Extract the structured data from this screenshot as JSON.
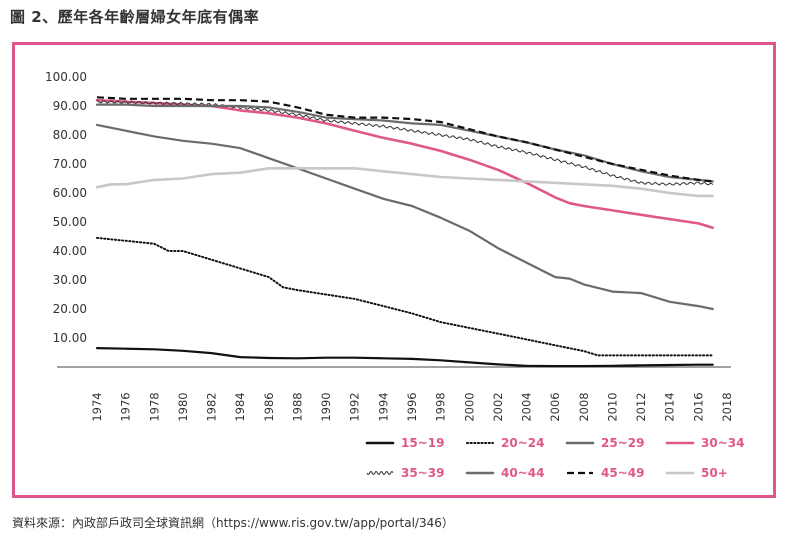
{
  "figure": {
    "title": "圖 2、歷年各年齡層婦女年底有偶率",
    "source": "資料來源：內政部戶政司全球資訊網（https://www.ris.gov.tw/app/portal/346）"
  },
  "chart_data": {
    "type": "line",
    "title": "圖 2、歷年各年齡層婦女年底有偶率",
    "xlabel": "",
    "ylabel": "",
    "xlim": [
      1974,
      2018
    ],
    "ylim": [
      0,
      100
    ],
    "x_ticks": [
      "1974",
      "1976",
      "1978",
      "1980",
      "1982",
      "1984",
      "1986",
      "1988",
      "1990",
      "1992",
      "1994",
      "1996",
      "1998",
      "2000",
      "2002",
      "2004",
      "2006",
      "2008",
      "2010",
      "2012",
      "2014",
      "2016",
      "2018"
    ],
    "y_ticks": [
      "10.00",
      "20.00",
      "30.00",
      "40.00",
      "50.00",
      "60.00",
      "70.00",
      "80.00",
      "90.00",
      "100.00"
    ],
    "grid": false,
    "legend_position": "bottom",
    "series": [
      {
        "name": "15~19",
        "color": "#111111",
        "style": "solid",
        "x": [
          1974,
          1976,
          1978,
          1980,
          1982,
          1984,
          1986,
          1988,
          1990,
          1992,
          1994,
          1996,
          1998,
          2000,
          2002,
          2004,
          2006,
          2008,
          2010,
          2012,
          2014,
          2016,
          2017
        ],
        "values": [
          6.5,
          6.3,
          6.1,
          5.6,
          4.8,
          3.4,
          3.1,
          3.0,
          3.2,
          3.2,
          3.0,
          2.8,
          2.3,
          1.6,
          0.9,
          0.4,
          0.3,
          0.3,
          0.4,
          0.6,
          0.7,
          0.8,
          0.8
        ]
      },
      {
        "name": "20~24",
        "color": "#111111",
        "style": "dotted",
        "x": [
          1974,
          1976,
          1978,
          1979,
          1980,
          1982,
          1984,
          1986,
          1987,
          1988,
          1990,
          1992,
          1994,
          1996,
          1998,
          2000,
          2002,
          2004,
          2006,
          2008,
          2009,
          2010,
          2012,
          2014,
          2016,
          2017
        ],
        "values": [
          44.5,
          43.5,
          42.5,
          40.0,
          40.0,
          37.0,
          34.0,
          31.0,
          27.5,
          26.5,
          25.0,
          23.5,
          21.0,
          18.5,
          15.5,
          13.5,
          11.5,
          9.5,
          7.5,
          5.5,
          4.0,
          4.0,
          4.0,
          4.0,
          4.0,
          4.0
        ]
      },
      {
        "name": "25~29",
        "color": "#6b6b6b",
        "style": "solid",
        "x": [
          1974,
          1976,
          1978,
          1980,
          1982,
          1984,
          1986,
          1988,
          1990,
          1992,
          1994,
          1996,
          1998,
          2000,
          2002,
          2004,
          2006,
          2007,
          2008,
          2010,
          2012,
          2014,
          2016,
          2017
        ],
        "values": [
          83.5,
          81.5,
          79.5,
          78.0,
          77.0,
          75.5,
          72.0,
          68.5,
          65.0,
          61.5,
          58.0,
          55.5,
          51.5,
          47.0,
          41.0,
          36.0,
          31.0,
          30.5,
          28.5,
          26.0,
          25.5,
          22.5,
          21.0,
          20.0
        ]
      },
      {
        "name": "30~34",
        "color": "#e0578a",
        "style": "solid",
        "x": [
          1974,
          1976,
          1978,
          1980,
          1982,
          1984,
          1986,
          1988,
          1990,
          1992,
          1994,
          1996,
          1998,
          2000,
          2002,
          2004,
          2006,
          2007,
          2008,
          2010,
          2012,
          2014,
          2016,
          2017
        ],
        "values": [
          92.0,
          91.5,
          91.0,
          90.5,
          90.0,
          88.5,
          87.5,
          86.0,
          84.0,
          81.5,
          79.0,
          77.0,
          74.5,
          71.5,
          68.0,
          63.5,
          58.5,
          56.5,
          55.5,
          54.0,
          52.5,
          51.0,
          49.5,
          48.0
        ]
      },
      {
        "name": "35~39",
        "color": "#333333",
        "style": "wavy",
        "x": [
          1974,
          1976,
          1978,
          1980,
          1982,
          1984,
          1986,
          1988,
          1990,
          1992,
          1994,
          1996,
          1998,
          2000,
          2002,
          2004,
          2006,
          2008,
          2010,
          2012,
          2014,
          2016,
          2017
        ],
        "values": [
          91.5,
          91.3,
          91.0,
          90.8,
          90.5,
          89.5,
          88.5,
          87.0,
          85.0,
          84.0,
          83.0,
          81.5,
          80.0,
          78.5,
          76.0,
          74.0,
          71.5,
          69.0,
          66.0,
          63.5,
          63.0,
          63.5,
          63.0
        ]
      },
      {
        "name": "40~44",
        "color": "#6b6b6b",
        "style": "solid",
        "x": [
          1974,
          1976,
          1978,
          1980,
          1982,
          1984,
          1986,
          1988,
          1990,
          1992,
          1994,
          1996,
          1998,
          2000,
          2002,
          2004,
          2006,
          2008,
          2010,
          2012,
          2014,
          2016,
          2017
        ],
        "values": [
          90.5,
          90.5,
          90.0,
          90.0,
          90.0,
          90.0,
          89.5,
          88.0,
          86.0,
          85.5,
          85.0,
          84.0,
          83.5,
          81.5,
          79.5,
          77.5,
          75.0,
          73.0,
          70.0,
          67.5,
          65.5,
          64.5,
          64.0
        ]
      },
      {
        "name": "45~49",
        "color": "#111111",
        "style": "dashed",
        "x": [
          1974,
          1976,
          1978,
          1980,
          1982,
          1984,
          1986,
          1988,
          1990,
          1992,
          1994,
          1996,
          1998,
          2000,
          2002,
          2004,
          2006,
          2008,
          2010,
          2012,
          2014,
          2016,
          2017
        ],
        "values": [
          93.0,
          92.5,
          92.5,
          92.5,
          92.0,
          92.0,
          91.5,
          89.5,
          87.0,
          86.0,
          86.0,
          85.5,
          84.5,
          82.0,
          79.5,
          77.5,
          75.0,
          72.5,
          70.0,
          68.0,
          66.0,
          64.5,
          64.0
        ]
      },
      {
        "name": "50+",
        "color": "#c8c8c8",
        "style": "solid",
        "x": [
          1974,
          1975,
          1976,
          1978,
          1980,
          1982,
          1984,
          1986,
          1988,
          1990,
          1992,
          1994,
          1996,
          1998,
          2000,
          2002,
          2004,
          2006,
          2008,
          2010,
          2012,
          2014,
          2016,
          2017
        ],
        "values": [
          62.0,
          63.0,
          63.0,
          64.5,
          65.0,
          66.5,
          67.0,
          68.5,
          68.5,
          68.5,
          68.5,
          67.5,
          66.5,
          65.5,
          65.0,
          64.5,
          64.0,
          63.5,
          63.0,
          62.5,
          61.5,
          60.0,
          59.0,
          59.0
        ]
      }
    ]
  }
}
